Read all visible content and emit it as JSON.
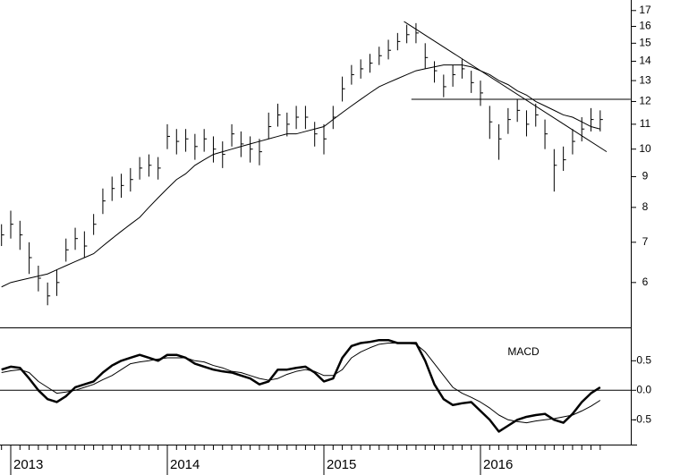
{
  "chart_data": [
    {
      "type": "ohlc",
      "log": true,
      "color": "#000000",
      "ylim": [
        5.07,
        17.7
      ],
      "yticks": [
        6,
        7,
        8,
        9,
        10,
        11,
        12,
        13,
        14,
        15,
        16,
        17
      ],
      "high": [
        7.5,
        7.9,
        7.6,
        7.0,
        6.4,
        6.0,
        6.3,
        7.1,
        7.4,
        7.3,
        7.8,
        8.6,
        9.0,
        9.1,
        9.3,
        9.7,
        9.8,
        9.7,
        11.0,
        10.8,
        10.8,
        10.6,
        10.8,
        10.5,
        10.3,
        11.0,
        10.7,
        10.5,
        10.4,
        11.5,
        11.9,
        11.5,
        11.8,
        11.8,
        11.1,
        11.0,
        11.8,
        13.2,
        13.8,
        14.1,
        14.4,
        14.8,
        15.2,
        15.6,
        16.1,
        16.2,
        15.0,
        14.0,
        13.3,
        13.8,
        14.1,
        13.5,
        13.0,
        11.8,
        11.0,
        11.7,
        12.1,
        11.6,
        11.9,
        11.2,
        10.0,
        10.1,
        10.8,
        11.3,
        11.7,
        11.6
      ],
      "low": [
        6.9,
        7.1,
        6.8,
        6.2,
        5.8,
        5.5,
        5.7,
        6.5,
        6.8,
        6.6,
        7.2,
        7.8,
        8.2,
        8.3,
        8.5,
        8.9,
        9.0,
        8.9,
        10.0,
        9.8,
        9.9,
        9.6,
        9.9,
        9.5,
        9.3,
        10.1,
        9.7,
        9.5,
        9.4,
        10.4,
        10.9,
        10.5,
        10.8,
        10.8,
        10.1,
        9.8,
        10.8,
        12.0,
        12.8,
        13.1,
        13.4,
        13.8,
        14.1,
        14.6,
        15.0,
        15.0,
        13.6,
        12.9,
        12.2,
        12.7,
        13.1,
        12.4,
        11.8,
        10.4,
        9.6,
        10.6,
        11.1,
        10.5,
        10.9,
        10.0,
        8.5,
        9.2,
        9.8,
        10.3,
        10.7,
        10.7
      ],
      "close": [
        7.2,
        7.5,
        7.2,
        6.6,
        6.1,
        5.7,
        6.0,
        6.8,
        7.1,
        6.9,
        7.5,
        8.2,
        8.6,
        8.7,
        8.9,
        9.3,
        9.4,
        9.3,
        10.5,
        10.3,
        10.4,
        10.1,
        10.4,
        10.0,
        9.8,
        10.6,
        10.2,
        10.0,
        9.9,
        10.9,
        11.4,
        11.0,
        11.3,
        11.3,
        10.6,
        10.4,
        11.3,
        12.6,
        13.3,
        13.6,
        13.9,
        14.3,
        14.6,
        15.1,
        15.5,
        15.6,
        14.2,
        13.5,
        12.7,
        13.3,
        13.6,
        12.9,
        12.4,
        11.1,
        10.4,
        11.2,
        11.6,
        11.0,
        11.4,
        10.6,
        9.4,
        9.6,
        10.3,
        10.8,
        11.2,
        11.2
      ],
      "ma": [
        5.9,
        6.0,
        6.05,
        6.1,
        6.15,
        6.2,
        6.3,
        6.4,
        6.5,
        6.6,
        6.7,
        6.9,
        7.1,
        7.3,
        7.5,
        7.7,
        8.0,
        8.3,
        8.6,
        8.9,
        9.1,
        9.4,
        9.6,
        9.8,
        9.9,
        10.0,
        10.1,
        10.2,
        10.3,
        10.4,
        10.5,
        10.6,
        10.6,
        10.7,
        10.8,
        10.9,
        11.2,
        11.5,
        11.8,
        12.1,
        12.4,
        12.7,
        12.9,
        13.1,
        13.3,
        13.5,
        13.6,
        13.7,
        13.8,
        13.8,
        13.8,
        13.7,
        13.5,
        13.3,
        13.0,
        12.8,
        12.5,
        12.3,
        12.0,
        11.8,
        11.6,
        11.4,
        11.3,
        11.1,
        10.9,
        10.8
      ],
      "trendlines": [
        {
          "x": [
            43.7,
            65.7
          ],
          "values": [
            16.3,
            9.9
          ]
        },
        {
          "x": [
            44.5,
            68.3
          ],
          "values": [
            12.1,
            12.1
          ]
        }
      ]
    },
    {
      "type": "line",
      "title": "MACD",
      "categories": [
        null,
        "2013",
        null,
        null,
        null,
        null,
        null,
        null,
        null,
        null,
        null,
        null,
        null,
        null,
        null,
        null,
        null,
        null,
        "2014",
        null,
        null,
        null,
        null,
        null,
        null,
        null,
        null,
        null,
        null,
        null,
        null,
        null,
        null,
        null,
        null,
        "2015",
        null,
        null,
        null,
        null,
        null,
        null,
        null,
        null,
        null,
        null,
        null,
        null,
        null,
        null,
        null,
        null,
        "2016",
        null,
        null,
        null,
        null,
        null,
        null,
        null,
        null,
        null,
        null,
        null,
        null,
        null
      ],
      "ylim": [
        -0.92,
        1.05
      ],
      "yticks": [
        0.5,
        {
          "value": 0,
          "label": "0.0"
        },
        -0.5
      ],
      "zero_line": true,
      "series": [
        {
          "color": "#000000",
          "width": 2.5,
          "values": [
            0.35,
            0.4,
            0.38,
            0.2,
            0.0,
            -0.15,
            -0.2,
            -0.1,
            0.05,
            0.1,
            0.15,
            0.3,
            0.42,
            0.5,
            0.55,
            0.6,
            0.55,
            0.5,
            0.6,
            0.6,
            0.55,
            0.45,
            0.4,
            0.35,
            0.32,
            0.3,
            0.25,
            0.2,
            0.1,
            0.15,
            0.35,
            0.35,
            0.38,
            0.4,
            0.3,
            0.15,
            0.2,
            0.55,
            0.75,
            0.8,
            0.82,
            0.85,
            0.85,
            0.8,
            0.8,
            0.8,
            0.5,
            0.1,
            -0.15,
            -0.25,
            -0.22,
            -0.2,
            -0.35,
            -0.5,
            -0.7,
            -0.6,
            -0.5,
            -0.45,
            -0.42,
            -0.4,
            -0.5,
            -0.55,
            -0.4,
            -0.2,
            -0.05,
            0.05
          ]
        },
        {
          "color": "#000000",
          "width": 1,
          "values": [
            0.3,
            0.33,
            0.35,
            0.3,
            0.15,
            0.05,
            -0.05,
            -0.03,
            0.0,
            0.05,
            0.1,
            0.18,
            0.25,
            0.35,
            0.45,
            0.48,
            0.5,
            0.53,
            0.55,
            0.55,
            0.55,
            0.5,
            0.48,
            0.42,
            0.38,
            0.32,
            0.3,
            0.25,
            0.2,
            0.17,
            0.2,
            0.27,
            0.32,
            0.35,
            0.32,
            0.25,
            0.25,
            0.35,
            0.55,
            0.65,
            0.72,
            0.78,
            0.8,
            0.8,
            0.8,
            0.78,
            0.65,
            0.45,
            0.25,
            0.05,
            -0.05,
            -0.12,
            -0.2,
            -0.3,
            -0.42,
            -0.5,
            -0.53,
            -0.55,
            -0.52,
            -0.5,
            -0.48,
            -0.45,
            -0.42,
            -0.35,
            -0.27,
            -0.17
          ]
        }
      ]
    }
  ]
}
